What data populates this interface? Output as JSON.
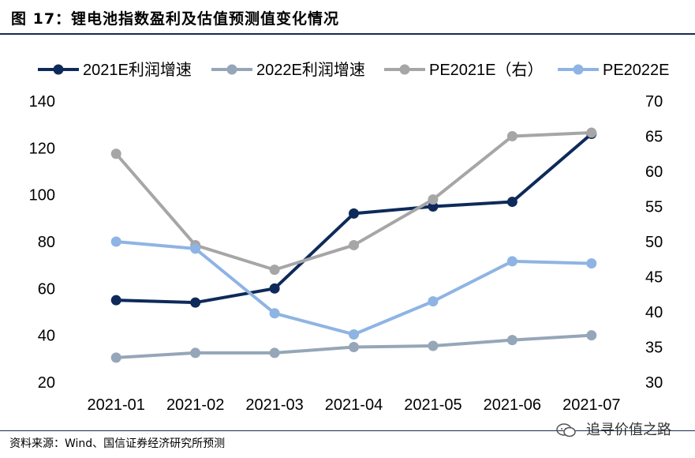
{
  "figure": {
    "title": "图 17：锂电池指数盈利及估值预测值变化情况",
    "source": "资料来源：Wind、国信证券经济研究所预测",
    "watermark": "追寻价值之路"
  },
  "chart_data": {
    "type": "line",
    "categories": [
      "2021-01",
      "2021-02",
      "2021-03",
      "2021-04",
      "2021-05",
      "2021-06",
      "2021-07"
    ],
    "left_axis": {
      "min": 20,
      "max": 140,
      "ticks": [
        20,
        40,
        60,
        80,
        100,
        120,
        140
      ]
    },
    "right_axis": {
      "min": 30,
      "max": 70,
      "ticks": [
        30,
        35,
        40,
        45,
        50,
        55,
        60,
        65,
        70
      ]
    },
    "grid": false,
    "legend_position": "top",
    "series": [
      {
        "name": "2021E利润增速",
        "axis": "left",
        "color": "#0e2a5a",
        "values": [
          55,
          54,
          60,
          92,
          95,
          97,
          126
        ]
      },
      {
        "name": "2022E利润增速",
        "axis": "left",
        "color": "#95a6b8",
        "values": [
          30.5,
          32.5,
          32.5,
          35,
          35.5,
          38,
          40
        ]
      },
      {
        "name": "PE2021E（右）",
        "axis": "right",
        "color": "#a6a6a6",
        "values": [
          62.5,
          49.5,
          46,
          49.5,
          56,
          65,
          65.5
        ]
      },
      {
        "name": "PE2022E",
        "axis": "right",
        "color": "#8eb4e3",
        "values": [
          50,
          49,
          39.8,
          36.8,
          41.5,
          47.2,
          46.9
        ]
      }
    ]
  }
}
